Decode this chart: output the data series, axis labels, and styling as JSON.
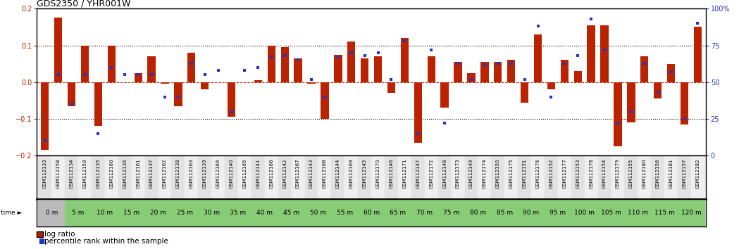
{
  "title": "GDS2350 / YHR001W",
  "categories": [
    "GSM112133",
    "GSM112158",
    "GSM112134",
    "GSM112159",
    "GSM112135",
    "GSM112160",
    "GSM112136",
    "GSM112161",
    "GSM112137",
    "GSM112162",
    "GSM112138",
    "GSM112163",
    "GSM112139",
    "GSM112164",
    "GSM112140",
    "GSM112165",
    "GSM112141",
    "GSM112166",
    "GSM112142",
    "GSM112167",
    "GSM112143",
    "GSM112168",
    "GSM112144",
    "GSM112169",
    "GSM112145",
    "GSM112170",
    "GSM112146",
    "GSM112171",
    "GSM112147",
    "GSM112172",
    "GSM112148",
    "GSM112173",
    "GSM112149",
    "GSM112174",
    "GSM112150",
    "GSM112175",
    "GSM112151",
    "GSM112176",
    "GSM112152",
    "GSM112177",
    "GSM112153",
    "GSM112178",
    "GSM112154",
    "GSM112179",
    "GSM112155",
    "GSM112180",
    "GSM112156",
    "GSM112181",
    "GSM112157",
    "GSM112182"
  ],
  "log_ratio": [
    -0.185,
    0.175,
    -0.065,
    0.1,
    -0.12,
    0.1,
    0.0,
    0.025,
    0.07,
    -0.005,
    -0.065,
    0.08,
    -0.02,
    0.0,
    -0.095,
    0.0,
    0.005,
    0.1,
    0.095,
    0.065,
    -0.005,
    -0.1,
    0.075,
    0.11,
    0.065,
    0.07,
    -0.03,
    0.12,
    -0.165,
    0.07,
    -0.07,
    0.055,
    0.025,
    0.055,
    0.055,
    0.06,
    -0.055,
    0.13,
    -0.02,
    0.06,
    0.03,
    0.155,
    0.155,
    -0.175,
    -0.11,
    0.07,
    -0.045,
    0.05,
    -0.115,
    0.15
  ],
  "percentile": [
    10,
    55,
    35,
    55,
    15,
    60,
    55,
    55,
    55,
    40,
    40,
    63,
    55,
    58,
    30,
    58,
    60,
    67,
    68,
    65,
    52,
    40,
    67,
    70,
    68,
    70,
    52,
    78,
    15,
    72,
    22,
    63,
    52,
    62,
    63,
    63,
    52,
    88,
    40,
    63,
    68,
    93,
    72,
    22,
    30,
    63,
    43,
    57,
    25,
    90
  ],
  "time_labels": [
    "0 m",
    "5 m",
    "10 m",
    "15 m",
    "20 m",
    "25 m",
    "30 m",
    "35 m",
    "40 m",
    "45 m",
    "50 m",
    "55 m",
    "60 m",
    "65 m",
    "70 m",
    "75 m",
    "80 m",
    "85 m",
    "90 m",
    "95 m",
    "100 m",
    "105 m",
    "110 m",
    "115 m",
    "120 m"
  ],
  "bar_color": "#bb2200",
  "dot_color": "#2233cc",
  "yticks_left": [
    -0.2,
    -0.1,
    0.0,
    0.1,
    0.2
  ],
  "yticks_right": [
    0,
    25,
    50,
    75,
    100
  ],
  "ytick_labels_right": [
    "0",
    "25",
    "50",
    "75",
    "100%"
  ],
  "title_fontsize": 9,
  "axis_tick_fontsize": 7,
  "gsm_fontsize": 5.0,
  "time_fontsize": 6.5,
  "legend_fontsize": 7.5
}
